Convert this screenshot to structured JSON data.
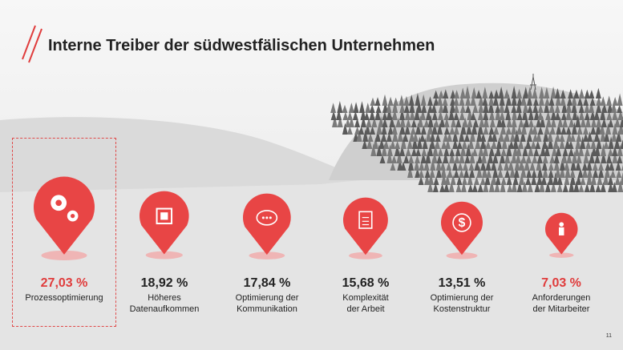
{
  "title": "Interne Treiber der südwestfälischen Unternehmen",
  "page_number": "11",
  "colors": {
    "accent": "#e03c3c",
    "pin": "#e84545",
    "text": "#222222"
  },
  "chart_data": {
    "type": "bar",
    "title": "Interne Treiber der südwestfälischen Unternehmen",
    "categories": [
      "Prozessoptimierung",
      "Höheres Datenaufkommen",
      "Optimierung der Kommunikation",
      "Komplexität der Arbeit",
      "Optimierung der Kostenstruktur",
      "Anforderungen der Mitarbeiter"
    ],
    "values": [
      27.03,
      18.92,
      17.84,
      15.68,
      13.51,
      7.03
    ],
    "value_labels": [
      "27,03 %",
      "18,92 %",
      "17,84 %",
      "15,68 %",
      "13,51 %",
      "7,03 %"
    ],
    "label_lines": [
      [
        "Prozessoptimierung",
        ""
      ],
      [
        "Höheres",
        "Datenaufkommen"
      ],
      [
        "Optimierung der",
        "Kommunikation"
      ],
      [
        "Komplexität",
        "der Arbeit"
      ],
      [
        "Optimierung der",
        "Kostenstruktur"
      ],
      [
        "Anforderungen",
        "der Mitarbeiter"
      ]
    ],
    "icons": [
      "gears-icon",
      "chip-icon",
      "speech-bubble-icon",
      "clipboard-icon",
      "dollar-icon",
      "person-icon"
    ],
    "highlighted": 0
  }
}
